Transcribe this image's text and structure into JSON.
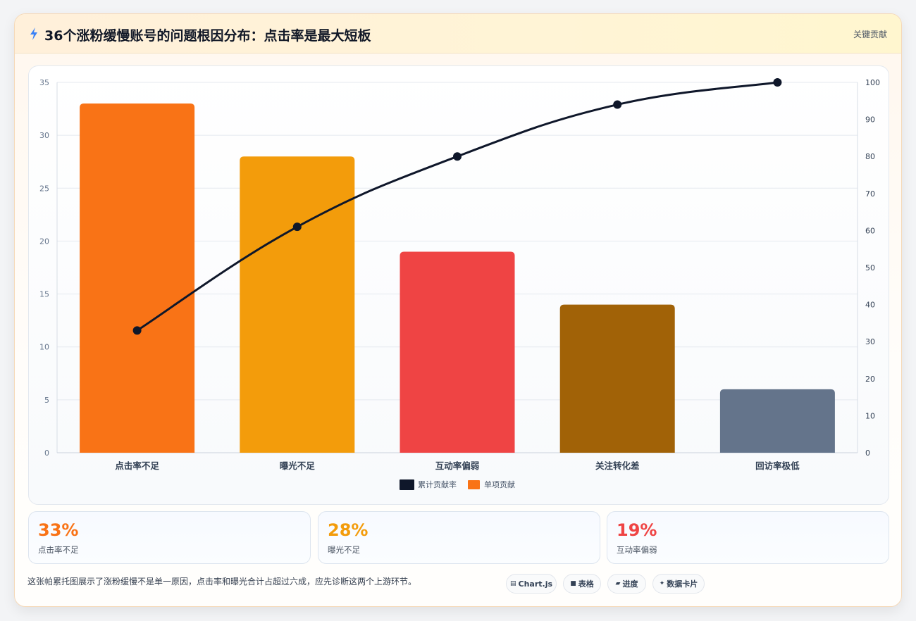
{
  "header": {
    "title": "36个涨粉缓慢账号的问题根因分布：点击率是最大短板",
    "tag": "关键贡献"
  },
  "chart_data": {
    "type": "bar",
    "categories": [
      "点击率不足",
      "曝光不足",
      "互动率偏弱",
      "关注转化差",
      "回访率极低"
    ],
    "series": [
      {
        "name": "单项贡献",
        "type": "bar",
        "values": [
          33,
          28,
          19,
          14,
          6
        ],
        "colors": [
          "#f97316",
          "#f39c0b",
          "#ef4444",
          "#a16207",
          "#64748b"
        ]
      },
      {
        "name": "累计贡献率",
        "type": "line",
        "axis": "right",
        "values": [
          33,
          61,
          80,
          94,
          100
        ],
        "color": "#0f172a"
      }
    ],
    "y_left": {
      "min": 0,
      "max": 35,
      "ticks": [
        0,
        5,
        10,
        15,
        20,
        25,
        30,
        35
      ]
    },
    "y_right": {
      "min": 0,
      "max": 100,
      "ticks": [
        0,
        10,
        20,
        30,
        40,
        50,
        60,
        70,
        80,
        90,
        100
      ]
    },
    "grid": true,
    "legend_position": "bottom"
  },
  "stats": [
    {
      "value": "33%",
      "label": "点击率不足",
      "color": "#f97316"
    },
    {
      "value": "28%",
      "label": "曝光不足",
      "color": "#f39c0b"
    },
    {
      "value": "19%",
      "label": "互动率偏弱",
      "color": "#ef4444"
    }
  ],
  "footer": {
    "text": "这张帕累托图展示了涨粉缓慢不是单一原因，点击率和曝光合计占超过六成，应先诊断这两个上游环节。",
    "pills": [
      {
        "label": "Chart.js",
        "icon": "chart-icon"
      },
      {
        "label": "表格",
        "icon": "table-icon"
      },
      {
        "label": "进度",
        "icon": "progress-icon"
      },
      {
        "label": "数据卡片",
        "icon": "sparkle-icon"
      }
    ]
  }
}
